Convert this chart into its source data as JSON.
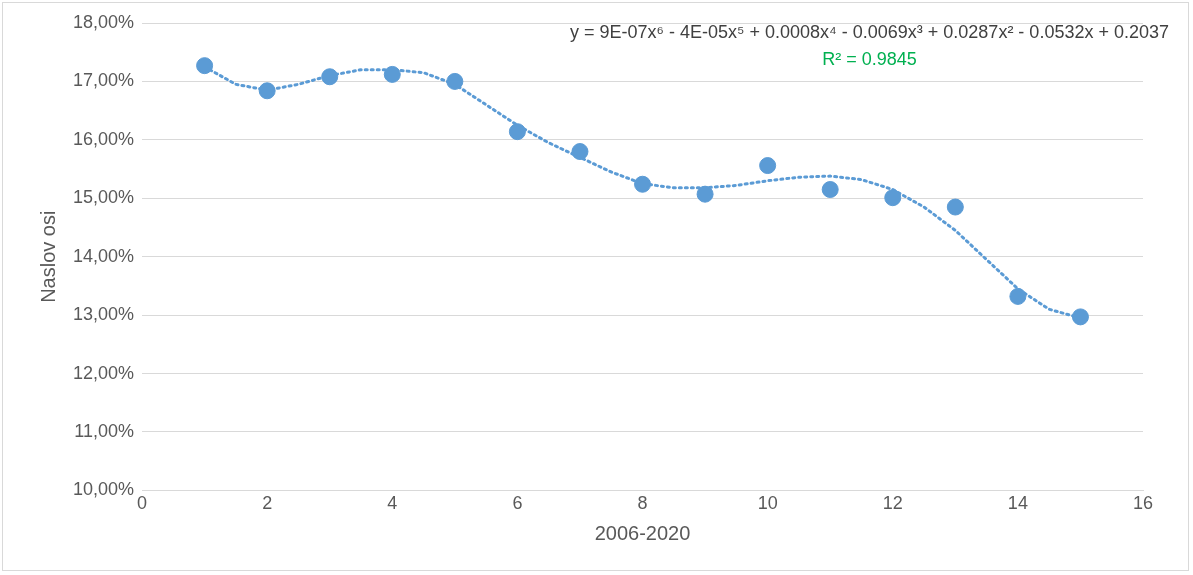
{
  "chart_data": {
    "type": "scatter",
    "xlabel": "2006-2020",
    "ylabel": "Naslov osi",
    "annotations": [
      "y = 9E-07x⁶ - 4E-05x⁵ + 0.0008x⁴ - 0.0069x³ + 0.0287x² - 0.0532x + 0.2037",
      "R² = 0.9845"
    ],
    "xlim": [
      0,
      16
    ],
    "xticks": [
      0,
      2,
      4,
      6,
      8,
      10,
      12,
      14,
      16
    ],
    "ylim": [
      10,
      18
    ],
    "yticks": [
      {
        "value": 10,
        "label": "10,00%"
      },
      {
        "value": 11,
        "label": "11,00%"
      },
      {
        "value": 12,
        "label": "12,00%"
      },
      {
        "value": 13,
        "label": "13,00%"
      },
      {
        "value": 14,
        "label": "14,00%"
      },
      {
        "value": 15,
        "label": "15,00%"
      },
      {
        "value": 16,
        "label": "16,00%"
      },
      {
        "value": 17,
        "label": "17,00%"
      },
      {
        "value": 18,
        "label": "18,00%"
      }
    ],
    "grid": "y",
    "legend": false,
    "series": [
      {
        "type": "scatter",
        "color": "#5b9bd5",
        "marker": "circle",
        "x": [
          1,
          2,
          3,
          4,
          5,
          6,
          7,
          8,
          9,
          10,
          11,
          12,
          13,
          14,
          15
        ],
        "values": [
          17.27,
          16.84,
          17.08,
          17.12,
          17.0,
          16.14,
          15.8,
          15.24,
          15.07,
          15.56,
          15.15,
          15.01,
          14.85,
          13.32,
          12.97
        ]
      },
      {
        "type": "line",
        "color": "#5b9bd5",
        "marker": "none",
        "line_style": "dotted",
        "x": [
          1,
          1.5,
          2,
          2.5,
          3,
          3.5,
          4,
          4.5,
          5,
          5.5,
          6,
          6.5,
          7,
          7.5,
          8,
          8.5,
          9,
          9.5,
          10,
          10.5,
          11,
          11.5,
          12,
          12.5,
          13,
          13.5,
          14,
          14.5,
          15
        ],
        "values": [
          17.25,
          16.95,
          16.85,
          16.95,
          17.1,
          17.2,
          17.2,
          17.15,
          16.95,
          16.6,
          16.25,
          15.95,
          15.7,
          15.45,
          15.25,
          15.18,
          15.18,
          15.22,
          15.3,
          15.36,
          15.38,
          15.32,
          15.15,
          14.85,
          14.45,
          13.95,
          13.45,
          13.1,
          12.95
        ]
      }
    ]
  }
}
